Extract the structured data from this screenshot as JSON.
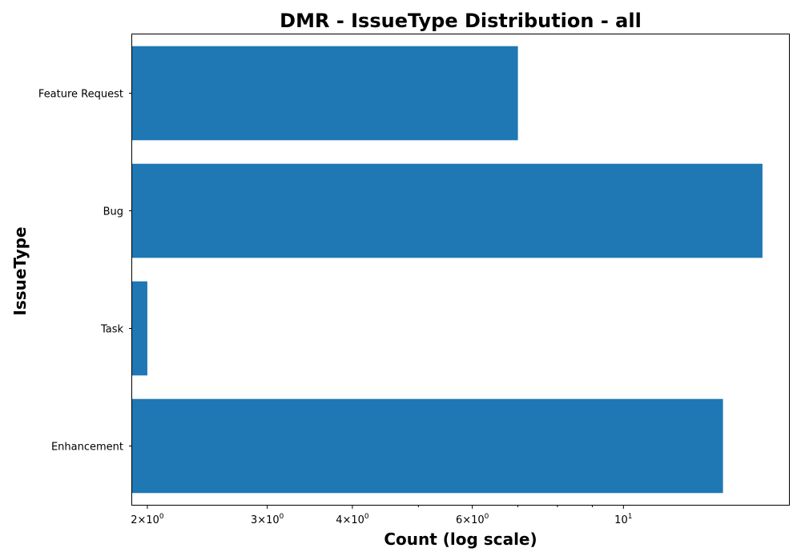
{
  "chart_data": {
    "type": "bar",
    "orientation": "horizontal",
    "title": "DMR - IssueType Distribution - all",
    "xlabel": "Count (log scale)",
    "ylabel": "IssueType",
    "x_scale": "log",
    "xlim": [
      1.9,
      17.5
    ],
    "categories": [
      "Feature Request",
      "Bug",
      "Task",
      "Enhancement"
    ],
    "values": [
      7,
      16,
      2,
      14
    ],
    "bar_color": "#1f77b4",
    "x_ticks": [
      {
        "value": 2,
        "base": "2×10",
        "exp": "0"
      },
      {
        "value": 3,
        "base": "3×10",
        "exp": "0"
      },
      {
        "value": 4,
        "base": "4×10",
        "exp": "0"
      },
      {
        "value": 6,
        "base": "6×10",
        "exp": "0"
      },
      {
        "value": 10,
        "base": "10",
        "exp": "1"
      }
    ],
    "x_minor_ticks": [
      5,
      7,
      8,
      9
    ],
    "grid": false,
    "legend": "none"
  }
}
